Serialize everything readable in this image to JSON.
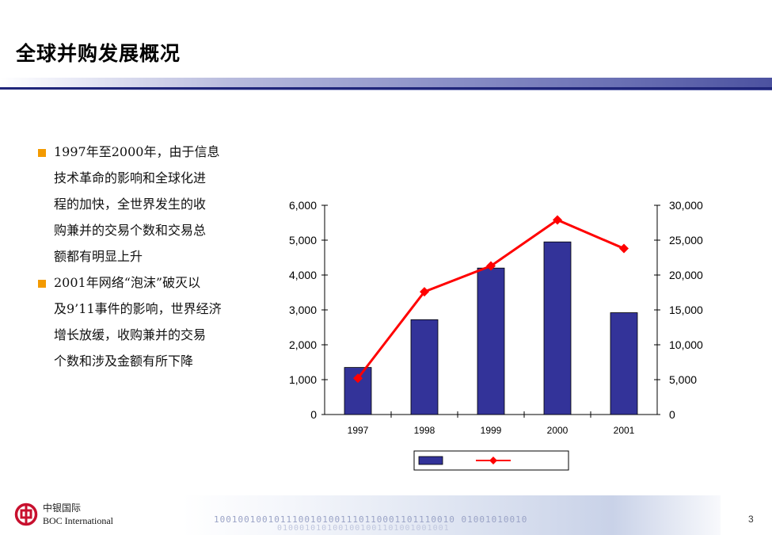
{
  "slide": {
    "title": "全球并购发展概况",
    "page_number": "3"
  },
  "bullets": [
    [
      "1997年至2000年，由于信息",
      "技术革命的影响和全球化进",
      "程的加快，全世界发生的收",
      "购兼并的交易个数和交易总",
      "额都有明显上升"
    ],
    [
      "2001年网络“泡沫”破灭以",
      "及9’11事件的影响，世界经济",
      "增长放缓，收购兼并的交易",
      "个数和涉及金额有所下降"
    ]
  ],
  "footer": {
    "company_cn": "中银国际",
    "company_en": "BOC International",
    "binary_text": "1001001001011100101001110110001101110010 01001010010",
    "binary_text2": "0100010101001001001101001001001"
  },
  "chart_data": {
    "type": "bar",
    "categories": [
      "1997",
      "1998",
      "1999",
      "2000",
      "2001"
    ],
    "series": [
      {
        "values": [
          1350,
          2720,
          4200,
          4950,
          2920
        ],
        "axis": "left",
        "type": "bar",
        "color": "#333399"
      },
      {
        "values": [
          5200,
          17600,
          21300,
          27900,
          23800
        ],
        "axis": "right",
        "type": "line",
        "color": "#ff0000"
      }
    ],
    "y_left": {
      "min": 0,
      "max": 6000,
      "ticks": [
        "0",
        "1,000",
        "2,000",
        "3,000",
        "4,000",
        "5,000",
        "6,000"
      ]
    },
    "y_right": {
      "min": 0,
      "max": 30000,
      "ticks": [
        "0",
        "5,000",
        "10,000",
        "15,000",
        "20,000",
        "25,000",
        "30,000"
      ]
    },
    "grid": false,
    "legend": "bottom-center"
  }
}
